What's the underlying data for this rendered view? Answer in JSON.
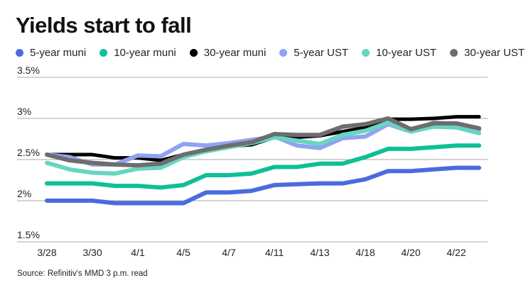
{
  "chart_data": {
    "type": "line",
    "title": "Yields start to fall",
    "source": "Source: Refinitiv's MMD 3 p.m. read",
    "x_tick_labels": [
      "3/28",
      "",
      "3/30",
      "",
      "4/1",
      "",
      "4/5",
      "",
      "4/7",
      "",
      "4/11",
      "",
      "4/13",
      "",
      "4/18",
      "",
      "4/20",
      "",
      "4/22",
      ""
    ],
    "y_ticks": [
      1.5,
      2,
      2.5,
      3,
      3.5
    ],
    "y_tick_labels": [
      "1.5%",
      "2%",
      "2.5%",
      "3%",
      "3.5%"
    ],
    "ylim": [
      1.5,
      3.5
    ],
    "grid": true,
    "legend_position": "top",
    "series": [
      {
        "name": "5-year muni",
        "color": "#4a6be0",
        "values": [
          2.0,
          2.0,
          2.0,
          1.97,
          1.97,
          1.97,
          1.97,
          2.1,
          2.1,
          2.12,
          2.19,
          2.2,
          2.21,
          2.21,
          2.26,
          2.36,
          2.36,
          2.38,
          2.4,
          2.4
        ]
      },
      {
        "name": "10-year muni",
        "color": "#0fbf97",
        "values": [
          2.21,
          2.21,
          2.21,
          2.18,
          2.18,
          2.16,
          2.19,
          2.31,
          2.31,
          2.33,
          2.41,
          2.41,
          2.45,
          2.45,
          2.53,
          2.63,
          2.63,
          2.65,
          2.67,
          2.67
        ]
      },
      {
        "name": "30-year muni",
        "color": "#000000",
        "values": [
          2.56,
          2.56,
          2.56,
          2.52,
          2.52,
          2.49,
          2.56,
          2.62,
          2.66,
          2.68,
          2.77,
          2.77,
          2.79,
          2.84,
          2.89,
          2.99,
          2.99,
          3.0,
          3.02,
          3.02
        ]
      },
      {
        "name": "5-year UST",
        "color": "#8ea4f0",
        "values": [
          2.56,
          2.53,
          2.44,
          2.44,
          2.55,
          2.54,
          2.69,
          2.67,
          2.7,
          2.74,
          2.78,
          2.67,
          2.64,
          2.76,
          2.78,
          2.93,
          2.84,
          2.95,
          2.93,
          2.86
        ]
      },
      {
        "name": "10-year UST",
        "color": "#66d6c0",
        "values": [
          2.46,
          2.38,
          2.34,
          2.33,
          2.39,
          2.4,
          2.53,
          2.6,
          2.65,
          2.7,
          2.77,
          2.73,
          2.69,
          2.8,
          2.85,
          2.95,
          2.84,
          2.9,
          2.89,
          2.82
        ]
      },
      {
        "name": "30-year UST",
        "color": "#6d6d70",
        "values": [
          2.56,
          2.49,
          2.46,
          2.44,
          2.43,
          2.45,
          2.56,
          2.62,
          2.67,
          2.71,
          2.81,
          2.8,
          2.8,
          2.9,
          2.93,
          3.0,
          2.87,
          2.94,
          2.94,
          2.88
        ]
      }
    ]
  }
}
